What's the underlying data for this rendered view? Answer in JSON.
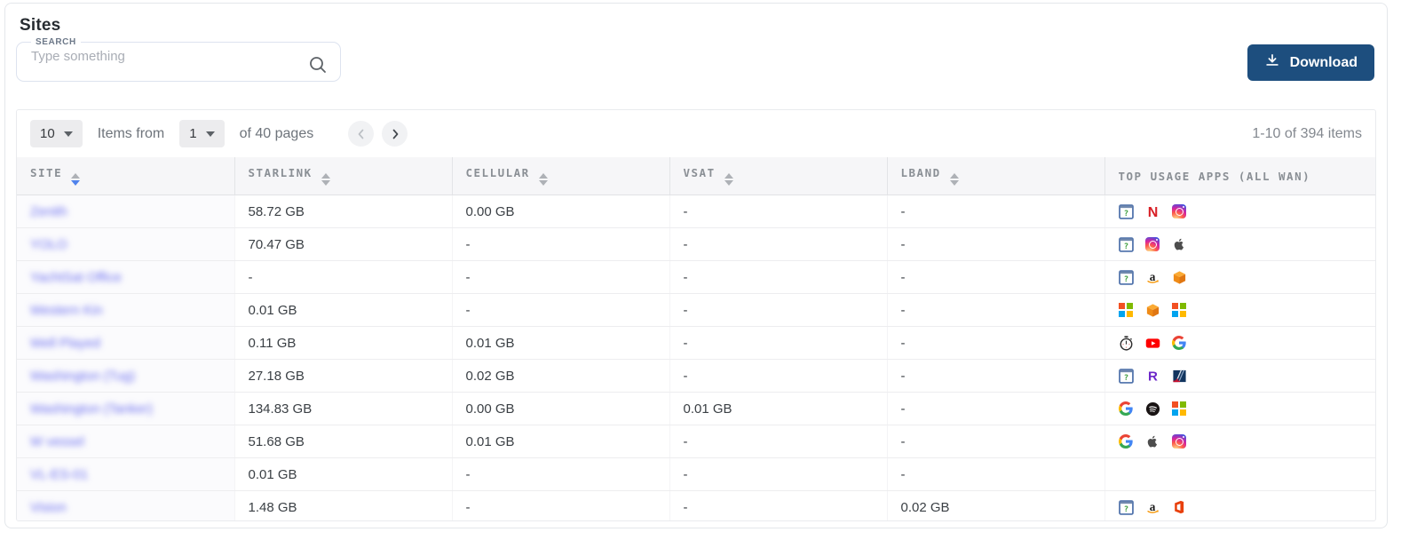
{
  "page": {
    "title": "Sites"
  },
  "search": {
    "label": "SEARCH",
    "placeholder": "Type something"
  },
  "toolbar": {
    "download_label": "Download"
  },
  "pagination": {
    "page_size": "10",
    "items_from_label": "Items from",
    "current_page": "1",
    "pages_label": "of 40 pages",
    "range_label": "1-10 of 394 items"
  },
  "colors": {
    "accent_navy": "#1d4e7e",
    "link_blue": "#6b6ef1",
    "sort_active": "#5083ec"
  },
  "table": {
    "columns": [
      {
        "label": "SITE",
        "sortable": true,
        "sort": "desc"
      },
      {
        "label": "STARLINK",
        "sortable": true,
        "sort": "none"
      },
      {
        "label": "CELLULAR",
        "sortable": true,
        "sort": "none"
      },
      {
        "label": "VSAT",
        "sortable": true,
        "sort": "none"
      },
      {
        "label": "LBAND",
        "sortable": true,
        "sort": "none"
      },
      {
        "label": "TOP USAGE APPS (ALL WAN)",
        "sortable": false,
        "sort": "none"
      }
    ],
    "rows": [
      {
        "site": "Zenith",
        "redacted": true,
        "starlink": "58.72 GB",
        "cellular": "0.00 GB",
        "vsat": "-",
        "lband": "-",
        "apps": [
          "generic-app",
          "netflix",
          "instagram"
        ]
      },
      {
        "site": "YOLO",
        "redacted": true,
        "starlink": "70.47 GB",
        "cellular": "-",
        "vsat": "-",
        "lband": "-",
        "apps": [
          "generic-app",
          "instagram",
          "apple"
        ]
      },
      {
        "site": "YachtSat Office",
        "redacted": true,
        "starlink": "-",
        "cellular": "-",
        "vsat": "-",
        "lband": "-",
        "apps": [
          "generic-app",
          "amazon",
          "cube"
        ]
      },
      {
        "site": "Western Kin",
        "redacted": true,
        "starlink": "0.01 GB",
        "cellular": "-",
        "vsat": "-",
        "lband": "-",
        "apps": [
          "microsoft",
          "cube",
          "microsoft"
        ]
      },
      {
        "site": "Well Played",
        "redacted": true,
        "starlink": "0.11 GB",
        "cellular": "0.01 GB",
        "vsat": "-",
        "lband": "-",
        "apps": [
          "stopwatch",
          "youtube",
          "google"
        ]
      },
      {
        "site": "Washington (Tug)",
        "redacted": true,
        "starlink": "27.18 GB",
        "cellular": "0.02 GB",
        "vsat": "-",
        "lband": "-",
        "apps": [
          "generic-app",
          "roblox",
          "navy-stripes"
        ]
      },
      {
        "site": "Washington (Tanker)",
        "redacted": true,
        "starlink": "134.83 GB",
        "cellular": "0.00 GB",
        "vsat": "0.01 GB",
        "lband": "-",
        "apps": [
          "google",
          "spotify",
          "microsoft"
        ]
      },
      {
        "site": "W vessel",
        "redacted": true,
        "starlink": "51.68 GB",
        "cellular": "0.01 GB",
        "vsat": "-",
        "lband": "-",
        "apps": [
          "google",
          "apple",
          "instagram"
        ]
      },
      {
        "site": "VL-ES-01",
        "redacted": true,
        "starlink": "0.01 GB",
        "cellular": "-",
        "vsat": "-",
        "lband": "-",
        "apps": []
      },
      {
        "site": "Vision",
        "redacted": true,
        "starlink": "1.48 GB",
        "cellular": "-",
        "vsat": "-",
        "lband": "0.02 GB",
        "apps": [
          "generic-app",
          "amazon",
          "office"
        ]
      }
    ]
  }
}
